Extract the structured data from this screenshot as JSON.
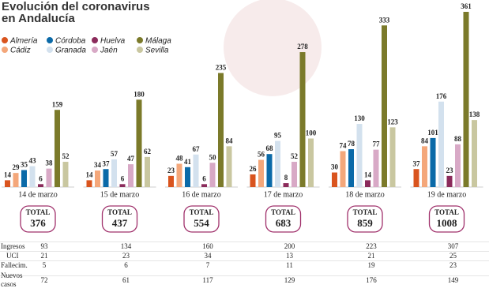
{
  "chart_data": {
    "type": "bar",
    "title": "Evolución del coronavirus en Andalucía",
    "categories": [
      "14 de marzo",
      "15 de marzo",
      "16 de marzo",
      "17 de marzo",
      "18 de marzo",
      "19 de marzo"
    ],
    "series": [
      {
        "name": "Almería",
        "color": "#d9541e",
        "values": [
          14,
          14,
          23,
          26,
          30,
          37
        ]
      },
      {
        "name": "Cádiz",
        "color": "#f4a77a",
        "values": [
          29,
          34,
          48,
          56,
          74,
          84
        ]
      },
      {
        "name": "Córdoba",
        "color": "#0b6aa8",
        "values": [
          35,
          37,
          41,
          68,
          78,
          101
        ]
      },
      {
        "name": "Granada",
        "color": "#d3e1ee",
        "values": [
          43,
          57,
          67,
          95,
          130,
          176
        ]
      },
      {
        "name": "Huelva",
        "color": "#8b2b5b",
        "values": [
          6,
          6,
          6,
          8,
          14,
          23
        ]
      },
      {
        "name": "Jaén",
        "color": "#d8a9c6",
        "values": [
          38,
          47,
          50,
          52,
          77,
          88
        ]
      },
      {
        "name": "Málaga",
        "color": "#7b7a2a",
        "values": [
          159,
          180,
          235,
          278,
          333,
          361
        ]
      },
      {
        "name": "Sevilla",
        "color": "#c9c7a0",
        "values": [
          52,
          62,
          84,
          100,
          123,
          138
        ]
      }
    ]
  },
  "totals": {
    "label": "TOTAL",
    "values": [
      376,
      437,
      554,
      683,
      859,
      1008
    ]
  },
  "table": {
    "rows": [
      {
        "label": "Ingresos",
        "values": [
          93,
          134,
          160,
          200,
          223,
          307
        ]
      },
      {
        "label": "UCI",
        "values": [
          21,
          23,
          34,
          13,
          21,
          25
        ]
      },
      {
        "label": "Fallecim.",
        "values": [
          5,
          6,
          7,
          11,
          19,
          23
        ]
      },
      {
        "label": "Nuevos casos",
        "values": [
          72,
          61,
          117,
          129,
          176,
          149
        ]
      }
    ]
  }
}
